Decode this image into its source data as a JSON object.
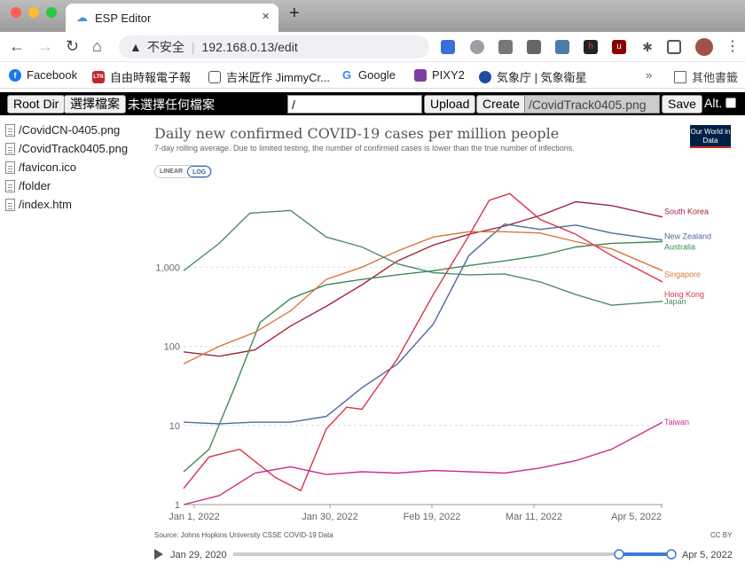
{
  "browser": {
    "tab_title": "ESP Editor",
    "address_security": "不安全",
    "address_url": "192.168.0.13/edit",
    "bookmarks": [
      {
        "label": "Facebook",
        "icon": "facebook-icon",
        "color": "#1877f2"
      },
      {
        "label": "自由時報電子報",
        "icon": "ltn-icon",
        "color": "#c1272d"
      },
      {
        "label": "吉米匠作 JimmyCr...",
        "icon": "document-icon",
        "color": "#555555"
      },
      {
        "label": "Google",
        "icon": "google-icon",
        "color": "#4285f4"
      },
      {
        "label": "PIXY2",
        "icon": "pixy-icon",
        "color": "#7b3fa0"
      },
      {
        "label": "気象庁 | 気象衛星",
        "icon": "jma-icon",
        "color": "#1d4e9e"
      }
    ],
    "more_bookmarks_label": "其他書籤"
  },
  "editor": {
    "root_dir_label": "Root Dir",
    "choose_file_label": "選擇檔案",
    "no_file_label": "未選擇任何檔案",
    "path_value": "/",
    "upload_label": "Upload",
    "create_label": "Create",
    "current_file": "/CovidTrack0405.png",
    "save_label": "Save",
    "alt_label": "Alt."
  },
  "files": [
    "/CovidCN-0405.png",
    "/CovidTrack0405.png",
    "/favicon.ico",
    "/folder",
    "/index.htm"
  ],
  "chart_data": {
    "type": "line",
    "title": "Daily new confirmed COVID-19 cases per million people",
    "subtitle": "7-day rolling average. Due to limited testing, the number of confirmed cases is lower than the true number of infections.",
    "logo_text": "Our World in Data",
    "scale_toggle": [
      "LINEAR",
      "LOG"
    ],
    "active_scale": "LOG",
    "yscale": "log",
    "y_ticks": [
      {
        "value": 1,
        "label": "1"
      },
      {
        "value": 10,
        "label": "10"
      },
      {
        "value": 100,
        "label": "100"
      },
      {
        "value": 1000,
        "label": "1,000"
      }
    ],
    "x_ticks": [
      "Jan 1, 2022",
      "Jan 30, 2022",
      "Feb 19, 2022",
      "Mar 11, 2022",
      "Apr 5, 2022"
    ],
    "x_range": [
      "2022-01-01",
      "2022-04-05"
    ],
    "source": "Source: Johns Hopkins University CSSE COVID-19 Data",
    "license": "CC BY",
    "timeline_start": "Jan 29, 2020",
    "timeline_end": "Apr 5, 2022",
    "series": [
      {
        "name": "South Korea",
        "color": "#a2253a",
        "points": [
          [
            "2022-01-01",
            85
          ],
          [
            "2022-01-08",
            75
          ],
          [
            "2022-01-15",
            90
          ],
          [
            "2022-01-22",
            180
          ],
          [
            "2022-01-29",
            320
          ],
          [
            "2022-02-05",
            600
          ],
          [
            "2022-02-12",
            1200
          ],
          [
            "2022-02-19",
            1900
          ],
          [
            "2022-02-26",
            2600
          ],
          [
            "2022-03-05",
            3300
          ],
          [
            "2022-03-12",
            4500
          ],
          [
            "2022-03-19",
            6700
          ],
          [
            "2022-03-26",
            6000
          ],
          [
            "2022-04-05",
            4300
          ]
        ]
      },
      {
        "name": "New Zealand",
        "color": "#4c6a9c",
        "points": [
          [
            "2022-01-01",
            11
          ],
          [
            "2022-01-08",
            10.5
          ],
          [
            "2022-01-15",
            11
          ],
          [
            "2022-01-22",
            11
          ],
          [
            "2022-01-29",
            13
          ],
          [
            "2022-02-05",
            30
          ],
          [
            "2022-02-12",
            60
          ],
          [
            "2022-02-19",
            190
          ],
          [
            "2022-02-26",
            1400
          ],
          [
            "2022-03-05",
            3500
          ],
          [
            "2022-03-12",
            3000
          ],
          [
            "2022-03-19",
            3400
          ],
          [
            "2022-03-26",
            2700
          ],
          [
            "2022-04-05",
            2200
          ]
        ]
      },
      {
        "name": "Australia",
        "color": "#3c8b57",
        "points": [
          [
            "2022-01-01",
            2.6
          ],
          [
            "2022-01-06",
            5
          ],
          [
            "2022-01-11",
            30
          ],
          [
            "2022-01-16",
            200
          ],
          [
            "2022-01-22",
            400
          ],
          [
            "2022-01-29",
            600
          ],
          [
            "2022-02-05",
            700
          ],
          [
            "2022-02-12",
            800
          ],
          [
            "2022-02-19",
            900
          ],
          [
            "2022-02-26",
            1050
          ],
          [
            "2022-03-05",
            1200
          ],
          [
            "2022-03-12",
            1400
          ],
          [
            "2022-03-19",
            1800
          ],
          [
            "2022-03-26",
            2000
          ],
          [
            "2022-04-05",
            2100
          ]
        ]
      },
      {
        "name": "Singapore",
        "color": "#d7783d",
        "points": [
          [
            "2022-01-01",
            60
          ],
          [
            "2022-01-08",
            100
          ],
          [
            "2022-01-15",
            150
          ],
          [
            "2022-01-22",
            280
          ],
          [
            "2022-01-29",
            700
          ],
          [
            "2022-02-05",
            1000
          ],
          [
            "2022-02-12",
            1600
          ],
          [
            "2022-02-19",
            2400
          ],
          [
            "2022-02-26",
            2800
          ],
          [
            "2022-03-05",
            2800
          ],
          [
            "2022-03-12",
            2700
          ],
          [
            "2022-03-19",
            2100
          ],
          [
            "2022-03-26",
            1700
          ],
          [
            "2022-04-05",
            900
          ]
        ]
      },
      {
        "name": "Hong Kong",
        "color": "#d8334a",
        "points": [
          [
            "2022-01-01",
            1.6
          ],
          [
            "2022-01-06",
            4
          ],
          [
            "2022-01-12",
            5
          ],
          [
            "2022-01-19",
            2.2
          ],
          [
            "2022-01-24",
            1.5
          ],
          [
            "2022-01-29",
            9
          ],
          [
            "2022-02-02",
            17
          ],
          [
            "2022-02-05",
            16
          ],
          [
            "2022-02-12",
            70
          ],
          [
            "2022-02-19",
            450
          ],
          [
            "2022-02-26",
            2500
          ],
          [
            "2022-03-02",
            7000
          ],
          [
            "2022-03-06",
            8500
          ],
          [
            "2022-03-12",
            4000
          ],
          [
            "2022-03-19",
            2600
          ],
          [
            "2022-03-26",
            1400
          ],
          [
            "2022-04-05",
            650
          ]
        ]
      },
      {
        "name": "Japan",
        "color": "#4b8b6e",
        "points": [
          [
            "2022-01-01",
            900
          ],
          [
            "2022-01-08",
            2000
          ],
          [
            "2022-01-14",
            4800
          ],
          [
            "2022-01-22",
            5200
          ],
          [
            "2022-01-29",
            2400
          ],
          [
            "2022-02-05",
            1800
          ],
          [
            "2022-02-12",
            1100
          ],
          [
            "2022-02-19",
            850
          ],
          [
            "2022-02-26",
            800
          ],
          [
            "2022-03-05",
            820
          ],
          [
            "2022-03-12",
            650
          ],
          [
            "2022-03-19",
            450
          ],
          [
            "2022-03-26",
            330
          ],
          [
            "2022-04-05",
            370
          ]
        ]
      },
      {
        "name": "Taiwan",
        "color": "#c8318a",
        "points": [
          [
            "2022-01-01",
            1
          ],
          [
            "2022-01-08",
            1.3
          ],
          [
            "2022-01-15",
            2.5
          ],
          [
            "2022-01-22",
            3
          ],
          [
            "2022-01-29",
            2.4
          ],
          [
            "2022-02-05",
            2.6
          ],
          [
            "2022-02-12",
            2.5
          ],
          [
            "2022-02-19",
            2.7
          ],
          [
            "2022-02-26",
            2.6
          ],
          [
            "2022-03-05",
            2.5
          ],
          [
            "2022-03-12",
            2.9
          ],
          [
            "2022-03-19",
            3.6
          ],
          [
            "2022-03-26",
            5
          ],
          [
            "2022-04-05",
            11
          ]
        ]
      }
    ]
  }
}
